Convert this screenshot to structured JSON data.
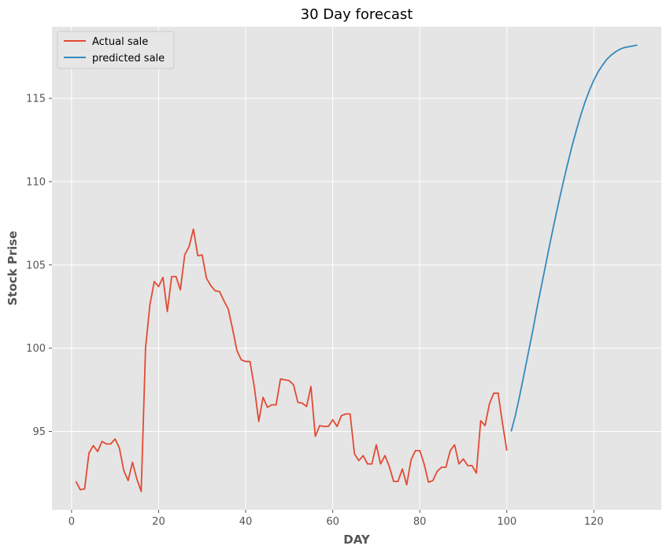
{
  "chart_data": {
    "type": "line",
    "title": "30 Day forecast",
    "xlabel": "DAY",
    "ylabel": "Stock Prise",
    "xlim": [
      -4.5,
      135.5
    ],
    "ylim": [
      90.3,
      119.3
    ],
    "xticks": [
      0,
      20,
      40,
      60,
      80,
      100,
      120
    ],
    "yticks": [
      95,
      100,
      105,
      110,
      115
    ],
    "grid": true,
    "legend_position": "upper-left",
    "colors": {
      "plot_bg": "#e5e5e5",
      "grid": "#ffffff",
      "text": "#555555"
    },
    "series": [
      {
        "name": "Actual sale",
        "color": "#e24a33",
        "x": [
          1,
          2,
          3,
          4,
          5,
          6,
          7,
          8,
          9,
          10,
          11,
          12,
          13,
          14,
          15,
          16,
          17,
          18,
          19,
          20,
          21,
          22,
          23,
          24,
          25,
          26,
          27,
          28,
          29,
          30,
          31,
          32,
          33,
          34,
          35,
          36,
          37,
          38,
          39,
          40,
          41,
          42,
          43,
          44,
          45,
          46,
          47,
          48,
          49,
          50,
          51,
          52,
          53,
          54,
          55,
          56,
          57,
          58,
          59,
          60,
          61,
          62,
          63,
          64,
          65,
          66,
          67,
          68,
          69,
          70,
          71,
          72,
          73,
          74,
          75,
          76,
          77,
          78,
          79,
          80,
          81,
          82,
          83,
          84,
          85,
          86,
          87,
          88,
          89,
          90,
          91,
          92,
          93,
          94,
          95,
          96,
          97,
          98,
          99,
          100
        ],
        "y": [
          92.0,
          91.5,
          91.55,
          93.7,
          94.15,
          93.8,
          94.4,
          94.25,
          94.25,
          94.55,
          94.0,
          92.65,
          92.05,
          93.15,
          92.15,
          91.4,
          100.0,
          102.6,
          104.0,
          103.7,
          104.25,
          102.2,
          104.3,
          104.3,
          103.5,
          105.6,
          106.1,
          107.15,
          105.55,
          105.6,
          104.2,
          103.75,
          103.45,
          103.4,
          102.85,
          102.35,
          101.15,
          99.85,
          99.3,
          99.2,
          99.2,
          97.65,
          95.6,
          97.05,
          96.45,
          96.6,
          96.6,
          98.15,
          98.1,
          98.05,
          97.8,
          96.75,
          96.7,
          96.5,
          97.7,
          94.7,
          95.35,
          95.3,
          95.3,
          95.7,
          95.3,
          95.95,
          96.05,
          96.05,
          93.65,
          93.25,
          93.55,
          93.05,
          93.05,
          94.2,
          93.05,
          93.55,
          92.9,
          92.0,
          92.0,
          92.75,
          91.8,
          93.3,
          93.85,
          93.85,
          93.05,
          91.95,
          92.05,
          92.6,
          92.85,
          92.85,
          93.85,
          94.2,
          93.05,
          93.35,
          92.95,
          92.95,
          92.5,
          95.65,
          95.35,
          96.65,
          97.3,
          97.3,
          95.5,
          93.85
        ]
      },
      {
        "name": "predicted sale",
        "color": "#348abd",
        "x": [
          101,
          102,
          103,
          104,
          105,
          106,
          107,
          108,
          109,
          110,
          111,
          112,
          113,
          114,
          115,
          116,
          117,
          118,
          119,
          120,
          121,
          122,
          123,
          124,
          125,
          126,
          127,
          128,
          129,
          130
        ],
        "y": [
          95.0,
          96.0,
          97.2,
          98.5,
          99.8,
          101.1,
          102.5,
          103.8,
          105.1,
          106.4,
          107.65,
          108.85,
          110.0,
          111.1,
          112.15,
          113.1,
          114.0,
          114.8,
          115.5,
          116.1,
          116.6,
          117.0,
          117.35,
          117.6,
          117.8,
          117.95,
          118.05,
          118.1,
          118.15,
          118.2
        ]
      }
    ]
  }
}
